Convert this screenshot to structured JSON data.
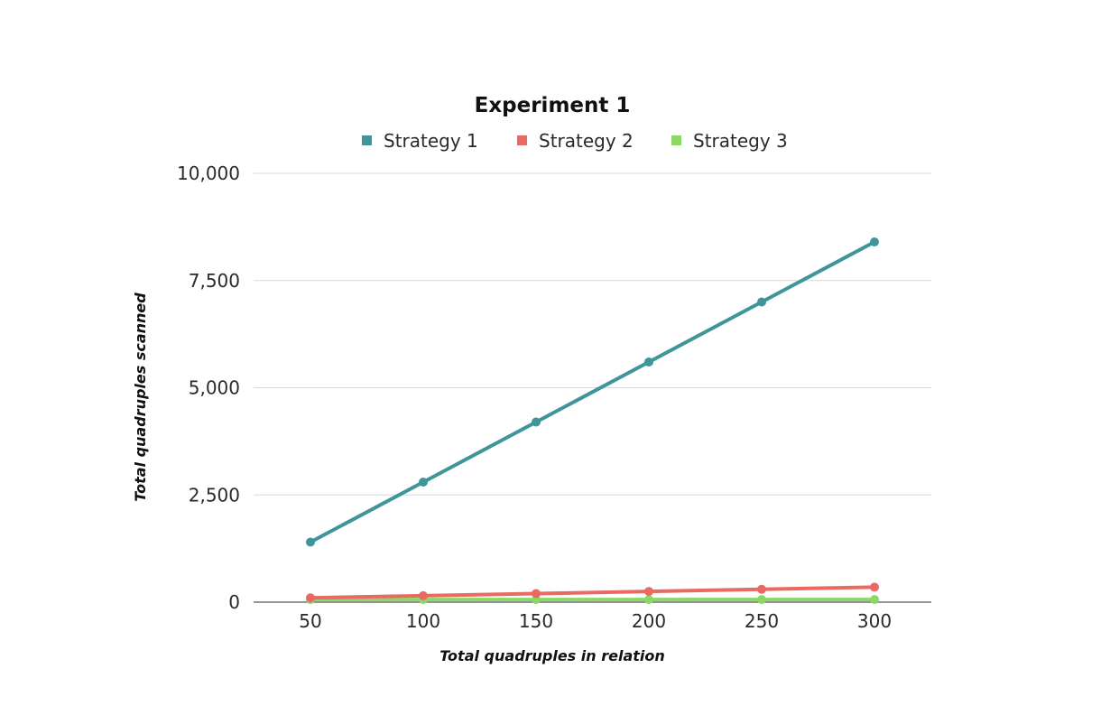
{
  "chart_data": {
    "type": "line",
    "title": "Experiment 1",
    "xlabel": "Total quadruples in relation",
    "ylabel": "Total quadruples scanned",
    "x": [
      50,
      100,
      150,
      200,
      250,
      300
    ],
    "x_tick_labels": [
      "50",
      "100",
      "150",
      "200",
      "250",
      "300"
    ],
    "ylim": [
      0,
      10000
    ],
    "y_ticks": [
      0,
      2500,
      5000,
      7500,
      10000
    ],
    "y_tick_labels": [
      "0",
      "2,500",
      "5,000",
      "7,500",
      "10,000"
    ],
    "grid": true,
    "legend_position": "top",
    "series": [
      {
        "name": "Strategy 1",
        "color": "#3f9599",
        "values": [
          1400,
          2800,
          4200,
          5600,
          7000,
          8400
        ]
      },
      {
        "name": "Strategy 2",
        "color": "#ea6a63",
        "values": [
          100,
          150,
          200,
          250,
          300,
          350
        ]
      },
      {
        "name": "Strategy 3",
        "color": "#8cd867",
        "values": [
          60,
          60,
          60,
          60,
          60,
          60
        ]
      }
    ]
  }
}
